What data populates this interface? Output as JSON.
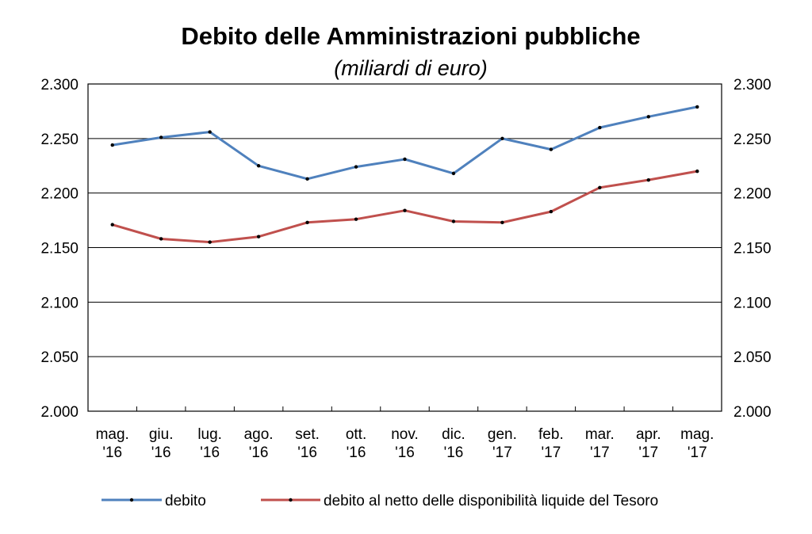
{
  "chart_data": {
    "type": "line",
    "title": "Debito delle Amministrazioni pubbliche",
    "subtitle": "(miliardi di euro)",
    "categories": [
      [
        "mag.",
        "'16"
      ],
      [
        "giu.",
        "'16"
      ],
      [
        "lug.",
        "'16"
      ],
      [
        "ago.",
        "'16"
      ],
      [
        "set.",
        "'16"
      ],
      [
        "ott.",
        "'16"
      ],
      [
        "nov.",
        "'16"
      ],
      [
        "dic.",
        "'16"
      ],
      [
        "gen.",
        "'17"
      ],
      [
        "feb.",
        "'17"
      ],
      [
        "mar.",
        "'17"
      ],
      [
        "apr.",
        "'17"
      ],
      [
        "mag.",
        "'17"
      ]
    ],
    "ylim": [
      2000,
      2300
    ],
    "yticks": [
      2000,
      2050,
      2100,
      2150,
      2200,
      2250,
      2300
    ],
    "ytick_labels": [
      "2.000",
      "2.050",
      "2.100",
      "2.150",
      "2.200",
      "2.250",
      "2.300"
    ],
    "secondary_axis": true,
    "grid": "horizontal",
    "legend_position": "bottom",
    "series": [
      {
        "name": "debito",
        "color": "#4F81BD",
        "values": [
          2244,
          2251,
          2256,
          2225,
          2213,
          2224,
          2231,
          2218,
          2250,
          2240,
          2260,
          2270,
          2279
        ]
      },
      {
        "name": "debito al netto delle disponibilità liquide del Tesoro",
        "color": "#C0504D",
        "values": [
          2171,
          2158,
          2155,
          2160,
          2173,
          2176,
          2184,
          2174,
          2173,
          2183,
          2205,
          2212,
          2220
        ]
      }
    ]
  }
}
